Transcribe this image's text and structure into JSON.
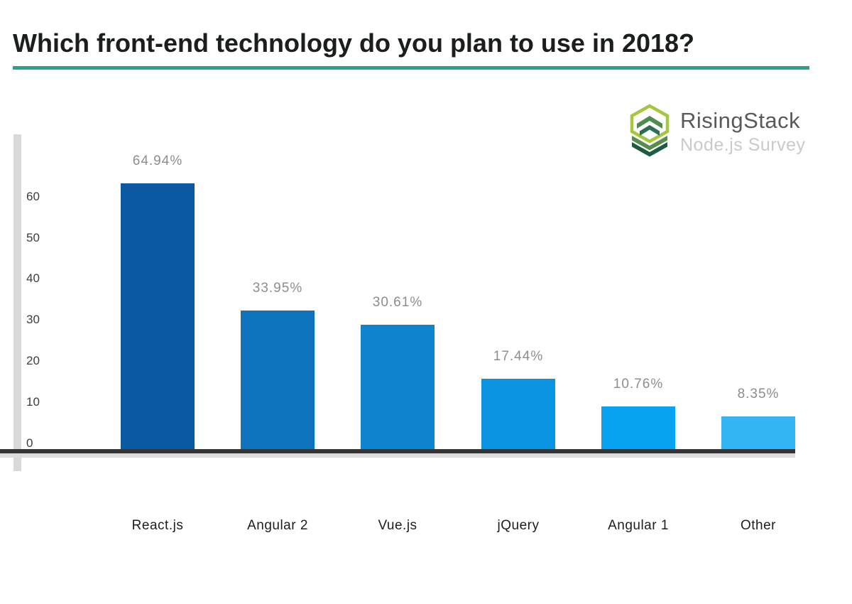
{
  "header": {
    "title": "Which front-end technology do you plan to use in 2018?",
    "underline_color": "#29a28b"
  },
  "logo": {
    "brand": "RisingStack",
    "subtitle": "Node.js Survey",
    "icon": "risingstack-hexagon-stack-icon",
    "colors": {
      "light_green": "#a5c73d",
      "medium_green": "#4f8c4e",
      "dark_green": "#2b6e53",
      "deep_green": "#1d5c40"
    }
  },
  "chart_data": {
    "type": "bar",
    "title": "Which front-end technology do you plan to use in 2018?",
    "categories": [
      "React.js",
      "Angular 2",
      "Vue.js",
      "jQuery",
      "Angular 1",
      "Other"
    ],
    "values": [
      64.94,
      33.95,
      30.61,
      17.44,
      10.76,
      8.35
    ],
    "value_labels": [
      "64.94%",
      "33.95%",
      "30.61%",
      "17.44%",
      "10.76%",
      "8.35%"
    ],
    "bar_colors": [
      "#0b59a0",
      "#0c73bc",
      "#0d84cd",
      "#0a94e1",
      "#07a3f0",
      "#33b5f3"
    ],
    "yticks": [
      0,
      10,
      20,
      30,
      40,
      50,
      60
    ],
    "ylim": [
      0,
      65
    ],
    "xlabel": "",
    "ylabel": "",
    "grid": false,
    "legend": false,
    "value_label_color": "#8d8d8d",
    "tick_label_color": "#3d3d3d",
    "category_label_color": "#1d1d1d",
    "axis_line_color": "#363636",
    "axis_shadow_color": "#dcdcdc",
    "y_accent_bar_color": "#d9d9d9"
  }
}
